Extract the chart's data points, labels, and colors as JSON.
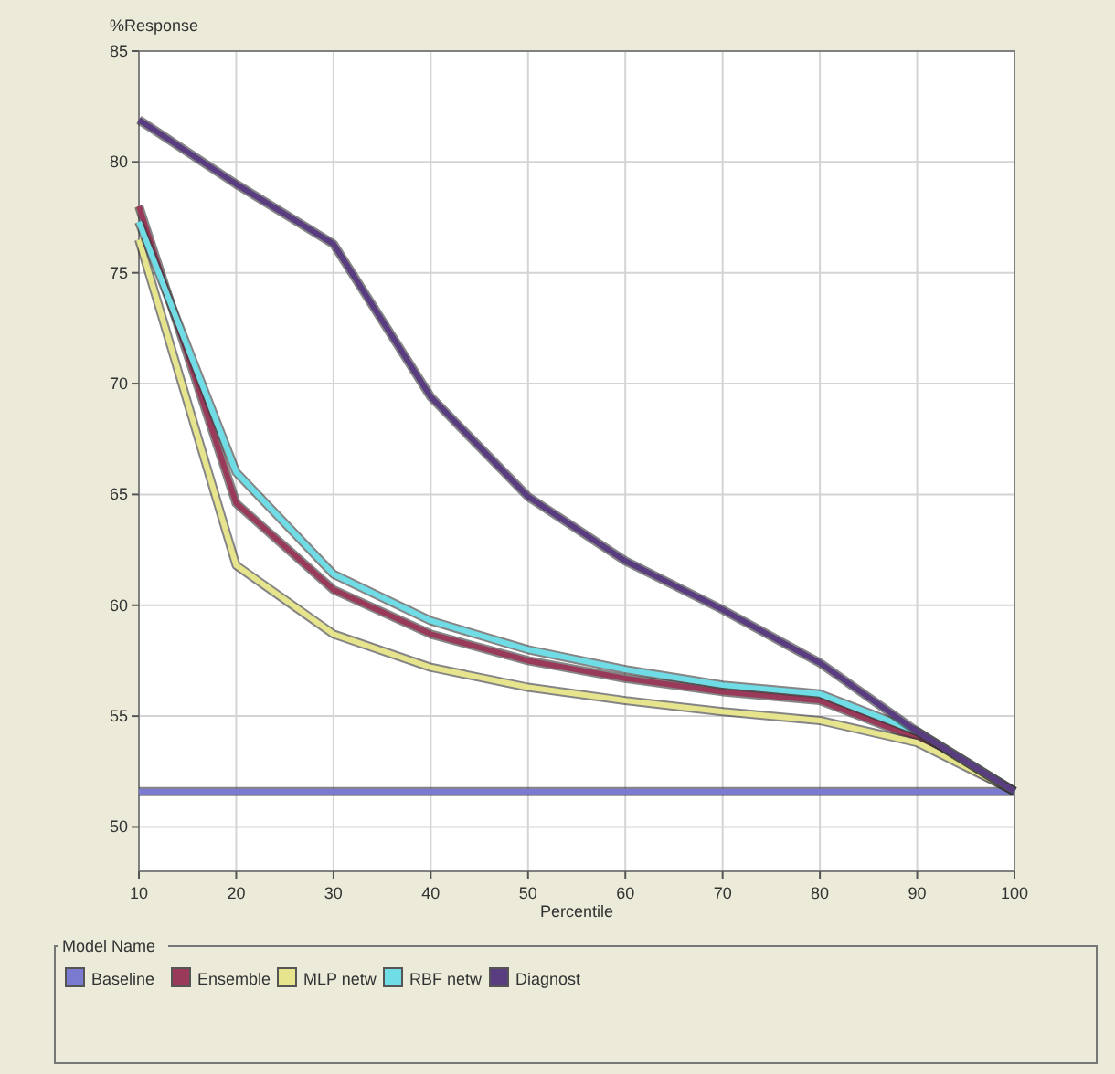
{
  "chart_data": {
    "type": "line",
    "xlabel": "Percentile",
    "ylabel": "%Response",
    "legend_title": "Model Name",
    "legend": "bottom",
    "grid": true,
    "marker": "none",
    "line_style": "solid",
    "x": [
      10,
      20,
      30,
      40,
      50,
      60,
      70,
      80,
      90,
      100
    ],
    "xlim": [
      10,
      100
    ],
    "xticks": [
      10,
      20,
      30,
      40,
      50,
      60,
      70,
      80,
      90,
      100
    ],
    "ylim": [
      48,
      85
    ],
    "yticks": [
      50,
      55,
      60,
      65,
      70,
      75,
      80,
      85
    ],
    "series": [
      {
        "name": "Baseline",
        "color": "#7a7ad0",
        "values": [
          51.6,
          51.6,
          51.6,
          51.6,
          51.6,
          51.6,
          51.6,
          51.6,
          51.6,
          51.6
        ]
      },
      {
        "name": "Ensemble",
        "color": "#9a3a5a",
        "values": [
          78,
          64.6,
          60.7,
          58.7,
          57.5,
          56.7,
          56.1,
          55.7,
          54,
          51.6
        ]
      },
      {
        "name": "MLP netw",
        "color": "#e6e48c",
        "values": [
          76.5,
          61.8,
          58.7,
          57.2,
          56.3,
          55.7,
          55.2,
          54.8,
          53.8,
          51.6
        ]
      },
      {
        "name": "RBF netw",
        "color": "#70dce6",
        "values": [
          77.3,
          66,
          61.4,
          59.3,
          58,
          57.1,
          56.4,
          56,
          54.3,
          51.6
        ]
      },
      {
        "name": "Diagnost",
        "color": "#5a3c80",
        "values": [
          81.9,
          79,
          76.3,
          69.4,
          64.9,
          62,
          59.8,
          57.4,
          54.3,
          51.6
        ]
      }
    ]
  }
}
